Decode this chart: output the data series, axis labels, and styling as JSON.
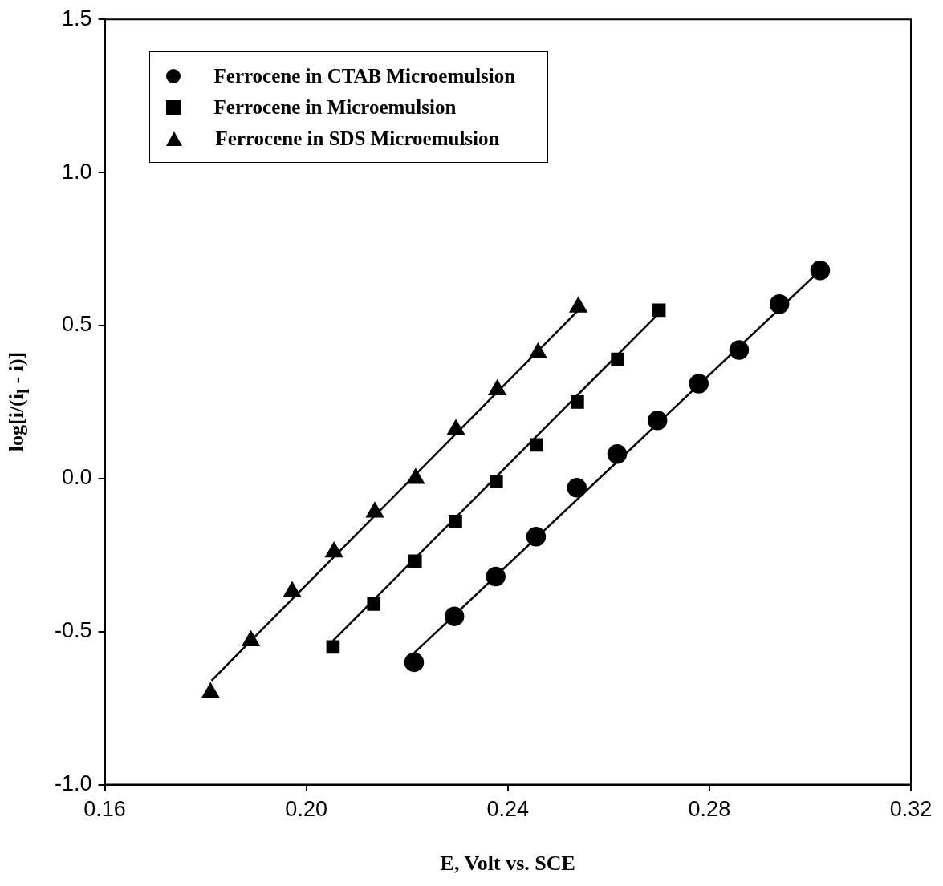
{
  "chart_data": {
    "type": "scatter",
    "xlabel": "E, Volt vs. SCE",
    "ylabel": "log[i/(i$_{l}$ - i)]",
    "xlim": [
      0.16,
      0.32
    ],
    "xticks": [
      {
        "value": 0.16,
        "label": "0.16"
      },
      {
        "value": 0.2,
        "label": "0.20"
      },
      {
        "value": 0.24,
        "label": "0.24"
      },
      {
        "value": 0.28,
        "label": "0.28"
      },
      {
        "value": 0.32,
        "label": "0.32"
      }
    ],
    "ylim": [
      -1.0,
      1.5
    ],
    "yticks": [
      {
        "value": -1,
        "label": "-1.0"
      },
      {
        "value": -0.5,
        "label": "-0.5"
      },
      {
        "value": 0,
        "label": "0.0"
      },
      {
        "value": 0.5,
        "label": "0.5"
      },
      {
        "value": 1,
        "label": "1.0"
      },
      {
        "value": 1.5,
        "label": "1.5"
      }
    ],
    "legend": "top left",
    "series": [
      {
        "name": "Ferrocene in CTAB Microemulsion",
        "color": "#000000",
        "marker": "circle",
        "x": [
          0.2214,
          0.2294,
          0.2376,
          0.2456,
          0.2537,
          0.2617,
          0.2697,
          0.2779,
          0.2859,
          0.2939,
          0.302
        ],
        "values": [
          -0.6,
          -0.45,
          -0.32,
          -0.19,
          -0.03,
          0.08,
          0.19,
          0.31,
          0.42,
          0.57,
          0.68
        ]
      },
      {
        "name": "Ferrocene in Microemulsion",
        "color": "#000000",
        "marker": "square",
        "x": [
          0.2053,
          0.2134,
          0.2216,
          0.2296,
          0.2377,
          0.2457,
          0.2538,
          0.2618,
          0.27
        ],
        "values": [
          -0.55,
          -0.41,
          -0.27,
          -0.14,
          -0.01,
          0.11,
          0.25,
          0.39,
          0.55
        ]
      },
      {
        "name": "Ferrocene in SDS Microemulsion",
        "color": "#000000",
        "marker": "triangle",
        "x": [
          0.181,
          0.189,
          0.1972,
          0.2055,
          0.2136,
          0.2217,
          0.2297,
          0.2379,
          0.246,
          0.254
        ],
        "values": [
          -0.7,
          -0.53,
          -0.37,
          -0.24,
          -0.11,
          0.0,
          0.16,
          0.29,
          0.41,
          0.56
        ]
      },
      {
        "type": "line",
        "color": "#000000",
        "marker": "none",
        "line_style": "solid",
        "x": [
          0.2214,
          0.302
        ],
        "values": [
          -0.57,
          0.68
        ]
      },
      {
        "type": "line",
        "color": "#000000",
        "marker": "none",
        "line_style": "solid",
        "x": [
          0.2053,
          0.27
        ],
        "values": [
          -0.53,
          0.54
        ]
      },
      {
        "type": "line",
        "color": "#000000",
        "marker": "none",
        "line_style": "solid",
        "x": [
          0.1812,
          0.189,
          0.254
        ],
        "values": [
          -0.66,
          -0.53,
          0.55
        ]
      }
    ]
  }
}
